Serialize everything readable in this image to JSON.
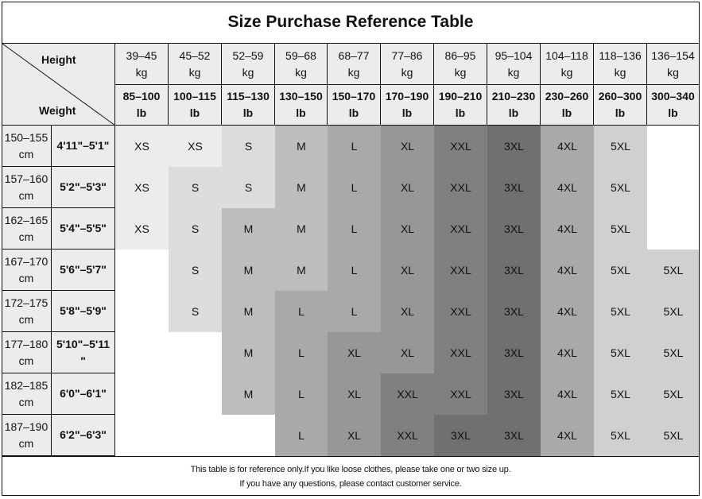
{
  "title": "Size Purchase Reference Table",
  "corner": {
    "top_label": "Height",
    "bottom_label": "Weight"
  },
  "weight_kg": [
    "39–45\nkg",
    "45–52\nkg",
    "52–59\nkg",
    "59–68\nkg",
    "68–77\nkg",
    "77–86\nkg",
    "86–95\nkg",
    "95–104\nkg",
    "104–118\nkg",
    "118–136\nkg",
    "136–154\nkg"
  ],
  "weight_lb": [
    "85–100\nlb",
    "100–115\nlb",
    "115–130\nlb",
    "130–150\nlb",
    "150–170\nlb",
    "170–190\nlb",
    "190–210\nlb",
    "210–230\nlb",
    "230–260\nlb",
    "260–300\nlb",
    "300–340\nlb"
  ],
  "rows": [
    {
      "cm": "150–155\ncm",
      "ft": "4'11\"–5'1\"",
      "sizes": [
        "XS",
        "XS",
        "S",
        "M",
        "L",
        "XL",
        "XXL",
        "3XL",
        "4XL",
        "5XL",
        ""
      ]
    },
    {
      "cm": "157–160\ncm",
      "ft": "5'2\"–5'3\"",
      "sizes": [
        "XS",
        "S",
        "S",
        "M",
        "L",
        "XL",
        "XXL",
        "3XL",
        "4XL",
        "5XL",
        ""
      ]
    },
    {
      "cm": "162–165\ncm",
      "ft": "5'4\"–5'5\"",
      "sizes": [
        "XS",
        "S",
        "M",
        "M",
        "L",
        "XL",
        "XXL",
        "3XL",
        "4XL",
        "5XL",
        ""
      ]
    },
    {
      "cm": "167–170\ncm",
      "ft": "5'6\"–5'7\"",
      "sizes": [
        "",
        "S",
        "M",
        "M",
        "L",
        "XL",
        "XXL",
        "3XL",
        "4XL",
        "5XL",
        "5XL"
      ]
    },
    {
      "cm": "172–175\ncm",
      "ft": "5'8\"–5'9\"",
      "sizes": [
        "",
        "S",
        "M",
        "L",
        "L",
        "XL",
        "XXL",
        "3XL",
        "4XL",
        "5XL",
        "5XL"
      ]
    },
    {
      "cm": "177–180\ncm",
      "ft": "5'10\"–5'11\n\"",
      "sizes": [
        "",
        "",
        "M",
        "L",
        "XL",
        "XL",
        "XXL",
        "3XL",
        "4XL",
        "5XL",
        "5XL"
      ]
    },
    {
      "cm": "182–185\ncm",
      "ft": "6'0\"–6'1\"",
      "sizes": [
        "",
        "",
        "M",
        "L",
        "XL",
        "XXL",
        "XXL",
        "3XL",
        "4XL",
        "5XL",
        "5XL"
      ]
    },
    {
      "cm": "187–190\ncm",
      "ft": "6'2\"–6'3\"",
      "sizes": [
        "",
        "",
        "",
        "L",
        "XL",
        "XXL",
        "3XL",
        "3XL",
        "4XL",
        "5XL",
        "5XL"
      ]
    }
  ],
  "size_colors": {
    "XS": "#ececec",
    "S": "#dcdcdc",
    "M": "#bdbdbd",
    "L": "#a9a9a9",
    "XL": "#979797",
    "XXL": "#808080",
    "3XL": "#707070",
    "4XL": "#aaa8a8",
    "5XL": "#d1d0d0"
  },
  "footer": {
    "line1": "This table is for reference only.If you like loose clothes, please take one or two size up.",
    "line2": "If you have any questions, please contact customer service."
  }
}
